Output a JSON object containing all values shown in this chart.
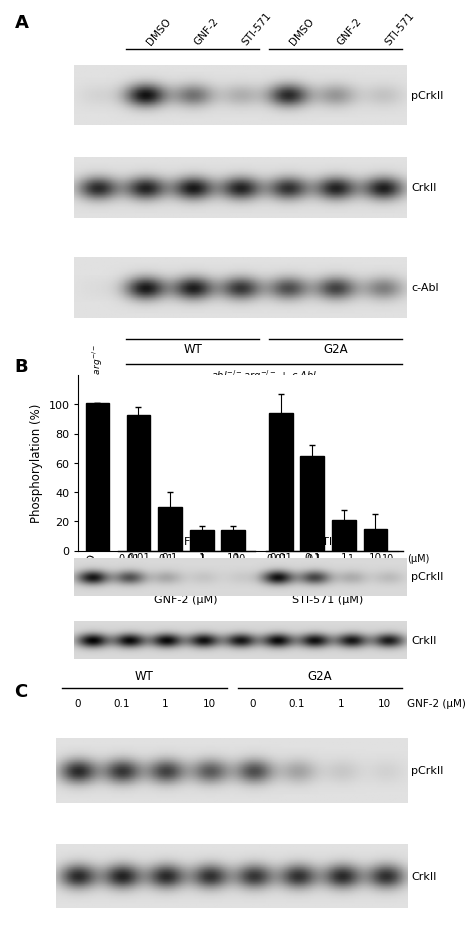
{
  "panel_A": {
    "label": "A",
    "col_labels": [
      "DMSO",
      "GNF-2",
      "STI-571",
      "DMSO",
      "GNF-2",
      "STI-571"
    ],
    "row_labels": [
      "pCrkII",
      "CrkII",
      "c-Abl"
    ],
    "pCrkII_intensities": [
      0.05,
      0.85,
      0.45,
      0.2,
      0.75,
      0.3,
      0.12
    ],
    "CrkII_intensities": [
      0.75,
      0.78,
      0.82,
      0.78,
      0.72,
      0.78,
      0.8
    ],
    "cAbl_intensities": [
      0.02,
      0.82,
      0.8,
      0.7,
      0.6,
      0.65,
      0.4
    ],
    "bg_color": 0.88,
    "wt_label": "WT",
    "g2a_label": "G2A",
    "bottom_label": "abl⁻/⁻arg⁻/⁻ + c-Abl",
    "left_rot_label": "abl⁻/⁻arg⁻/⁻"
  },
  "panel_B_bar": {
    "label": "B",
    "bar_values": [
      101,
      93,
      30,
      14,
      14,
      94,
      65,
      21,
      15
    ],
    "bar_errors": [
      0,
      5,
      10,
      3,
      3,
      13,
      7,
      7,
      10
    ],
    "bar_color": "#000000",
    "ylabel": "Phosphorylation (%)",
    "ylim": [
      0,
      120
    ],
    "yticks": [
      0,
      20,
      40,
      60,
      80,
      100
    ],
    "x_positions": [
      0,
      1.3,
      2.3,
      3.3,
      4.3,
      5.8,
      6.8,
      7.8,
      8.8
    ],
    "bar_width": 0.75,
    "xticklabels": [
      "DMSO",
      "0.01",
      "0.1",
      "1",
      "10",
      "0.01",
      "0.1",
      "1",
      "10"
    ],
    "group_labels": [
      "GNF-2 (μM)",
      "STI-571 (μM)"
    ]
  },
  "panel_B_blot": {
    "DMSO_label": "DMSO",
    "gnf2_label": "GNF-2",
    "sti_label": "STI-571",
    "conc_label": "(μM)",
    "sub_labels": [
      "0.01",
      "0.1",
      "1",
      "10",
      "0.01",
      "0.1",
      "1",
      "10"
    ],
    "row_labels": [
      "pCrkII",
      "CrkII"
    ],
    "pCrkII_intensities": [
      0.8,
      0.55,
      0.2,
      0.08,
      0.06,
      0.82,
      0.6,
      0.18,
      0.12
    ],
    "CrkII_intensities": [
      0.88,
      0.85,
      0.85,
      0.82,
      0.8,
      0.85,
      0.82,
      0.8,
      0.78
    ],
    "bg_color": 0.85
  },
  "panel_C": {
    "label": "C",
    "wt_label": "WT",
    "g2a_label": "G2A",
    "conc_labels": [
      "0",
      "0.1",
      "1",
      "10",
      "0",
      "0.1",
      "1",
      "10"
    ],
    "conc_unit_label": "GNF-2 (μM)",
    "row_labels": [
      "pCrkII",
      "CrkII"
    ],
    "pCrkII_intensities": [
      0.75,
      0.7,
      0.65,
      0.55,
      0.6,
      0.25,
      0.1,
      0.06
    ],
    "CrkII_intensities": [
      0.75,
      0.78,
      0.75,
      0.72,
      0.7,
      0.72,
      0.75,
      0.73
    ],
    "bg_color": 0.88
  }
}
